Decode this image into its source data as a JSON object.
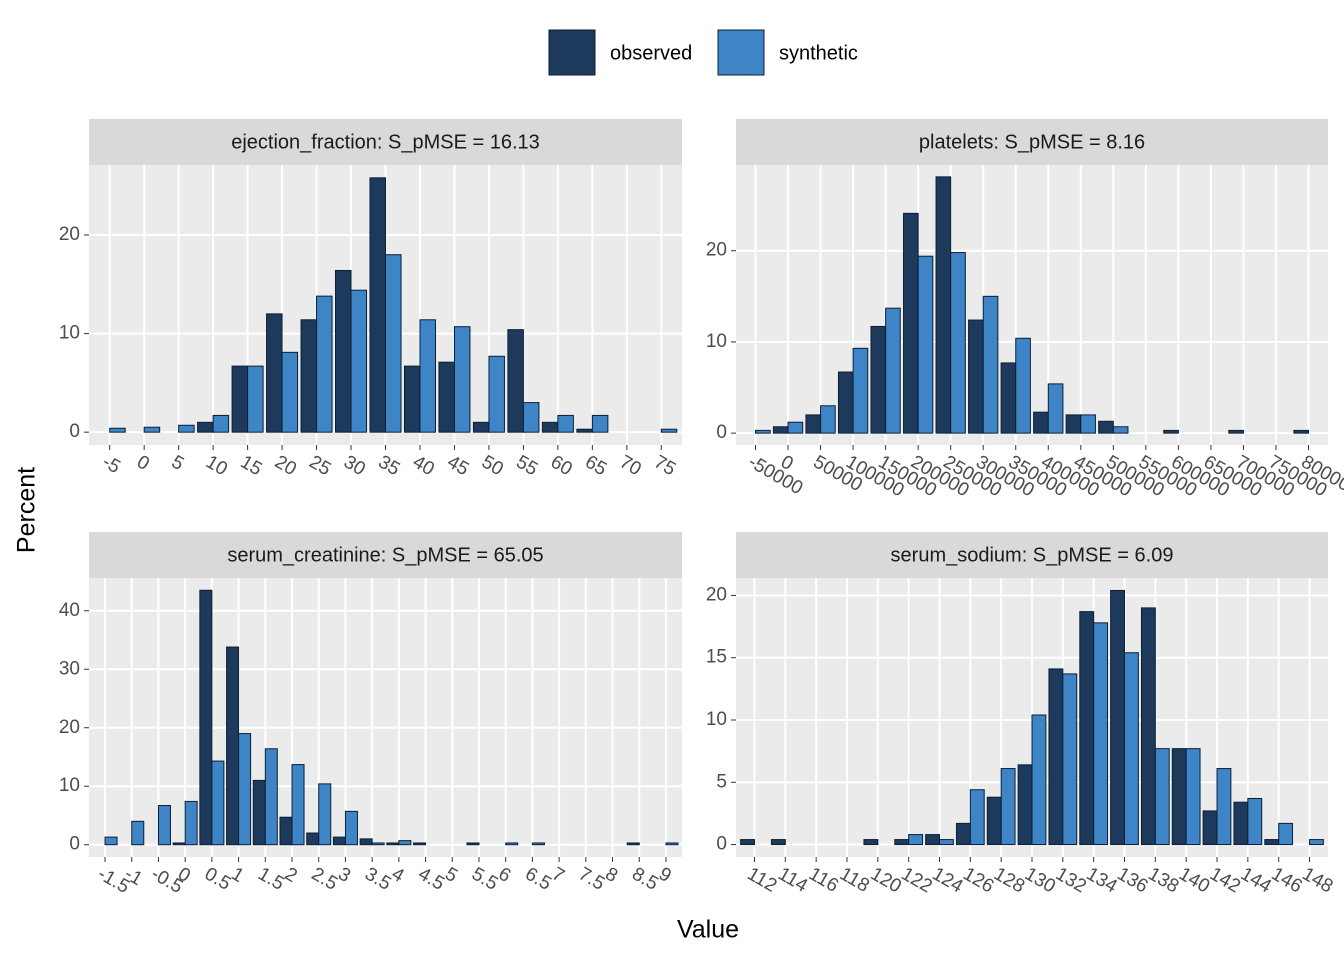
{
  "legend": [
    "observed",
    "synthetic"
  ],
  "x_label": "Value",
  "y_label": "Percent",
  "chart_data": [
    {
      "type": "bar",
      "title": "ejection_fraction: S_pMSE = 16.13",
      "categories": [
        "-5",
        "0",
        "5",
        "10",
        "15",
        "20",
        "25",
        "30",
        "35",
        "40",
        "45",
        "50",
        "55",
        "60",
        "65",
        "70",
        "75"
      ],
      "series": [
        {
          "name": "observed",
          "color": "#1d3a5c",
          "values": [
            0,
            0,
            0,
            1.0,
            6.7,
            12.0,
            11.4,
            16.4,
            25.8,
            6.7,
            7.1,
            1.0,
            10.4,
            1.0,
            0.3,
            0,
            0
          ]
        },
        {
          "name": "synthetic",
          "color": "#3d85c6",
          "values": [
            0.4,
            0.5,
            0.7,
            1.7,
            6.7,
            8.1,
            13.8,
            14.4,
            18.0,
            11.4,
            10.7,
            7.7,
            3.0,
            1.7,
            1.7,
            0,
            0.3
          ]
        }
      ],
      "ylim": [
        -1.3,
        27.1
      ],
      "yticks": [
        0,
        10,
        20
      ]
    },
    {
      "type": "bar",
      "title": "platelets: S_pMSE = 8.16",
      "categories": [
        "-50000",
        "0",
        "50000",
        "100000",
        "150000",
        "200000",
        "250000",
        "300000",
        "350000",
        "400000",
        "450000",
        "500000",
        "550000",
        "600000",
        "650000",
        "700000",
        "750000",
        "800000"
      ],
      "series": [
        {
          "name": "observed",
          "color": "#1d3a5c",
          "values": [
            0,
            0.7,
            2.0,
            6.7,
            11.7,
            24.1,
            28.1,
            12.4,
            7.7,
            2.3,
            2.0,
            1.3,
            0,
            0.3,
            0,
            0.3,
            0,
            0.3
          ]
        },
        {
          "name": "synthetic",
          "color": "#3d85c6",
          "values": [
            0.3,
            1.2,
            3.0,
            9.3,
            13.7,
            19.4,
            19.8,
            15.0,
            10.4,
            5.4,
            2.0,
            0.7,
            0,
            0,
            0,
            0,
            0,
            0
          ]
        }
      ],
      "ylim": [
        -1.3,
        29.4
      ],
      "yticks": [
        0,
        10,
        20
      ]
    },
    {
      "type": "bar",
      "title": "serum_creatinine: S_pMSE = 65.05",
      "categories": [
        "-1.5",
        "-1",
        "-0.5",
        "0",
        "0.5",
        "1",
        "1.5",
        "2",
        "2.5",
        "3",
        "3.5",
        "4",
        "4.5",
        "5",
        "5.5",
        "6",
        "6.5",
        "7",
        "7.5",
        "8",
        "8.5",
        "9"
      ],
      "series": [
        {
          "name": "observed",
          "color": "#1d3a5c",
          "values": [
            0,
            0,
            0,
            0.3,
            43.5,
            33.8,
            11.0,
            4.7,
            2.0,
            1.3,
            1.0,
            0.3,
            0.3,
            0,
            0.3,
            0,
            0,
            0,
            0,
            0,
            0.3,
            0
          ]
        },
        {
          "name": "synthetic",
          "color": "#3d85c6",
          "values": [
            1.3,
            4.0,
            6.7,
            7.4,
            14.3,
            19.0,
            16.4,
            13.7,
            10.4,
            5.7,
            0.3,
            0.7,
            0,
            0,
            0,
            0.3,
            0.3,
            0,
            0,
            0,
            0,
            0.3
          ]
        }
      ],
      "ylim": [
        -2.1,
        45.6
      ],
      "yticks": [
        0,
        10,
        20,
        30,
        40
      ]
    },
    {
      "type": "bar",
      "title": "serum_sodium: S_pMSE = 6.09",
      "categories": [
        "112",
        "114",
        "116",
        "118",
        "120",
        "122",
        "124",
        "126",
        "128",
        "130",
        "132",
        "134",
        "136",
        "138",
        "140",
        "142",
        "144",
        "146",
        "148"
      ],
      "series": [
        {
          "name": "observed",
          "color": "#1d3a5c",
          "values": [
            0.4,
            0.4,
            0,
            0,
            0.4,
            0.4,
            0.8,
            1.7,
            3.8,
            6.4,
            14.1,
            18.7,
            20.4,
            19.0,
            7.7,
            2.7,
            3.4,
            0.4,
            0
          ]
        },
        {
          "name": "synthetic",
          "color": "#3d85c6",
          "values": [
            0,
            0,
            0,
            0,
            0,
            0.8,
            0.4,
            4.4,
            6.1,
            10.4,
            13.7,
            17.8,
            15.4,
            7.7,
            7.7,
            6.1,
            3.7,
            1.7,
            0.4
          ]
        }
      ],
      "ylim": [
        -1.0,
        21.4
      ],
      "yticks": [
        0,
        5,
        10,
        15,
        20
      ]
    }
  ]
}
